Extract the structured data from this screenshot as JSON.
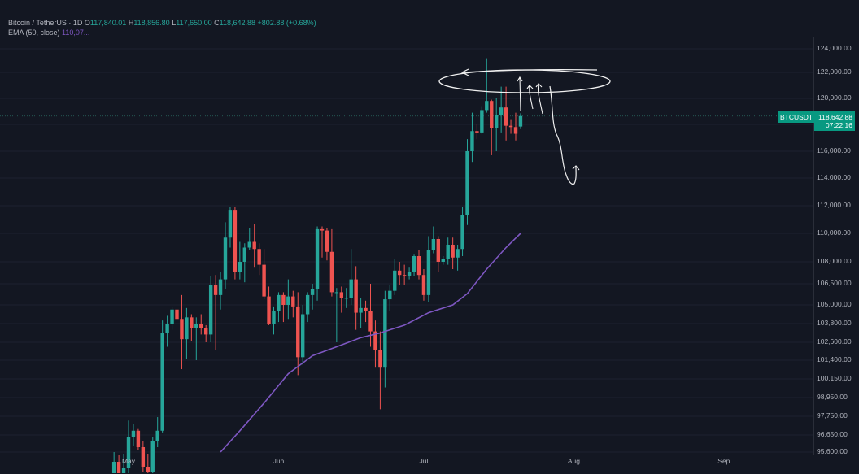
{
  "header": {
    "symbol": "Bitcoin / TetherUS · 1D",
    "o_label": "O",
    "o_value": "117,840.01",
    "h_label": "H",
    "h_value": "118,856.80",
    "l_label": "L",
    "l_value": "117,650.00",
    "c_label": "C",
    "c_value": "118,642.88",
    "change": "+802.88 (+0.68%)",
    "ema_label": "EMA (50, close)",
    "ema_value": "110,07..."
  },
  "badge": {
    "ticker": "BTCUSDT",
    "price": "118,642.88",
    "countdown": "07:22:16"
  },
  "colors": {
    "up": "#26a69a",
    "down": "#ef5350",
    "ema": "#7e57c2",
    "bg": "#131722"
  },
  "chart_data": {
    "type": "candlestick",
    "ylabels": [
      "124,000.00",
      "122,000.00",
      "120,000.00",
      "118,000.00",
      "116,000.00",
      "114,000.00",
      "112,000.00",
      "110,000.00",
      "108,000.00",
      "106,500.00",
      "105,000.00",
      "103,800.00",
      "102,600.00",
      "101,400.00",
      "100,150.00",
      "98,950.00",
      "97,750.00",
      "96,650.00",
      "95,600.00"
    ],
    "xlabels": [
      "May",
      "Jun",
      "Jul",
      "Aug",
      "Sep"
    ],
    "candles": [
      {
        "date": "2025-04-28",
        "o": 94000,
        "h": 95600,
        "l": 93000,
        "c": 95000
      },
      {
        "date": "2025-04-29",
        "o": 95000,
        "h": 95400,
        "l": 94000,
        "c": 94300
      },
      {
        "date": "2025-04-30",
        "o": 94300,
        "h": 95500,
        "l": 93800,
        "c": 94600
      },
      {
        "date": "2025-05-01",
        "o": 94600,
        "h": 97500,
        "l": 94200,
        "c": 96500
      },
      {
        "date": "2025-05-02",
        "o": 96500,
        "h": 97300,
        "l": 96000,
        "c": 96900
      },
      {
        "date": "2025-05-03",
        "o": 96900,
        "h": 97000,
        "l": 95700,
        "c": 95900
      },
      {
        "date": "2025-05-04",
        "o": 95900,
        "h": 96300,
        "l": 94400,
        "c": 94700
      },
      {
        "date": "2025-05-05",
        "o": 94700,
        "h": 95500,
        "l": 93600,
        "c": 94400
      },
      {
        "date": "2025-05-06",
        "o": 94400,
        "h": 96500,
        "l": 93900,
        "c": 96300
      },
      {
        "date": "2025-05-07",
        "o": 96300,
        "h": 97700,
        "l": 95900,
        "c": 96900
      },
      {
        "date": "2025-05-08",
        "o": 96900,
        "h": 104000,
        "l": 96800,
        "c": 103200
      },
      {
        "date": "2025-05-09",
        "o": 103200,
        "h": 104300,
        "l": 102300,
        "c": 103800
      },
      {
        "date": "2025-05-10",
        "o": 103800,
        "h": 104900,
        "l": 103400,
        "c": 104700
      },
      {
        "date": "2025-05-11",
        "o": 104700,
        "h": 105200,
        "l": 103300,
        "c": 104100
      },
      {
        "date": "2025-05-12",
        "o": 104100,
        "h": 105700,
        "l": 100800,
        "c": 102800
      },
      {
        "date": "2025-05-13",
        "o": 102800,
        "h": 104800,
        "l": 101500,
        "c": 104200
      },
      {
        "date": "2025-05-14",
        "o": 104200,
        "h": 104400,
        "l": 102700,
        "c": 103500
      },
      {
        "date": "2025-05-15",
        "o": 103500,
        "h": 104200,
        "l": 101400,
        "c": 103800
      },
      {
        "date": "2025-05-16",
        "o": 103800,
        "h": 104400,
        "l": 103100,
        "c": 103500
      },
      {
        "date": "2025-05-17",
        "o": 103500,
        "h": 103700,
        "l": 102600,
        "c": 103100
      },
      {
        "date": "2025-05-18",
        "o": 103100,
        "h": 107000,
        "l": 102600,
        "c": 106400
      },
      {
        "date": "2025-05-19",
        "o": 106400,
        "h": 107100,
        "l": 102100,
        "c": 105700
      },
      {
        "date": "2025-05-20",
        "o": 105700,
        "h": 107300,
        "l": 104700,
        "c": 106800
      },
      {
        "date": "2025-05-21",
        "o": 106800,
        "h": 110800,
        "l": 106100,
        "c": 109700
      },
      {
        "date": "2025-05-22",
        "o": 109700,
        "h": 111900,
        "l": 109000,
        "c": 111700
      },
      {
        "date": "2025-05-23",
        "o": 111700,
        "h": 111900,
        "l": 106800,
        "c": 107300
      },
      {
        "date": "2025-05-24",
        "o": 107300,
        "h": 109400,
        "l": 106800,
        "c": 108000
      },
      {
        "date": "2025-05-25",
        "o": 108000,
        "h": 109300,
        "l": 106600,
        "c": 109000
      },
      {
        "date": "2025-05-26",
        "o": 109000,
        "h": 110400,
        "l": 108800,
        "c": 109400
      },
      {
        "date": "2025-05-27",
        "o": 109400,
        "h": 110700,
        "l": 107600,
        "c": 108900
      },
      {
        "date": "2025-05-28",
        "o": 108900,
        "h": 109300,
        "l": 107100,
        "c": 107800
      },
      {
        "date": "2025-05-29",
        "o": 107800,
        "h": 108900,
        "l": 105400,
        "c": 105600
      },
      {
        "date": "2025-05-30",
        "o": 105600,
        "h": 106300,
        "l": 103700,
        "c": 103800
      },
      {
        "date": "2025-05-31",
        "o": 103800,
        "h": 104900,
        "l": 103100,
        "c": 104600
      },
      {
        "date": "2025-06-01",
        "o": 104600,
        "h": 105900,
        "l": 103900,
        "c": 105700
      },
      {
        "date": "2025-06-02",
        "o": 105700,
        "h": 105900,
        "l": 103900,
        "c": 105000
      },
      {
        "date": "2025-06-03",
        "o": 105000,
        "h": 106800,
        "l": 104100,
        "c": 105600
      },
      {
        "date": "2025-06-04",
        "o": 105600,
        "h": 106000,
        "l": 104200,
        "c": 104900
      },
      {
        "date": "2025-06-05",
        "o": 104900,
        "h": 105900,
        "l": 100400,
        "c": 101600
      },
      {
        "date": "2025-06-06",
        "o": 101600,
        "h": 105000,
        "l": 101100,
        "c": 104400
      },
      {
        "date": "2025-06-07",
        "o": 104400,
        "h": 105900,
        "l": 103900,
        "c": 105700
      },
      {
        "date": "2025-06-08",
        "o": 105700,
        "h": 106500,
        "l": 104700,
        "c": 106100
      },
      {
        "date": "2025-06-09",
        "o": 106100,
        "h": 110500,
        "l": 105300,
        "c": 110300
      },
      {
        "date": "2025-06-10",
        "o": 110300,
        "h": 110500,
        "l": 108300,
        "c": 110200
      },
      {
        "date": "2025-06-11",
        "o": 110200,
        "h": 110400,
        "l": 108100,
        "c": 108700
      },
      {
        "date": "2025-06-12",
        "o": 108700,
        "h": 110300,
        "l": 105600,
        "c": 105900
      },
      {
        "date": "2025-06-13",
        "o": 105900,
        "h": 106200,
        "l": 102600,
        "c": 105900
      },
      {
        "date": "2025-06-14",
        "o": 105900,
        "h": 106300,
        "l": 104500,
        "c": 105500
      },
      {
        "date": "2025-06-15",
        "o": 105500,
        "h": 106200,
        "l": 104800,
        "c": 105500
      },
      {
        "date": "2025-06-16",
        "o": 105500,
        "h": 108900,
        "l": 105000,
        "c": 106800
      },
      {
        "date": "2025-06-17",
        "o": 106800,
        "h": 107700,
        "l": 103400,
        "c": 104500
      },
      {
        "date": "2025-06-18",
        "o": 104500,
        "h": 105500,
        "l": 103500,
        "c": 104800
      },
      {
        "date": "2025-06-19",
        "o": 104800,
        "h": 105300,
        "l": 103900,
        "c": 104600
      },
      {
        "date": "2025-06-20",
        "o": 104600,
        "h": 106500,
        "l": 102300,
        "c": 103300
      },
      {
        "date": "2025-06-21",
        "o": 103300,
        "h": 104000,
        "l": 100900,
        "c": 102100
      },
      {
        "date": "2025-06-22",
        "o": 102100,
        "h": 103300,
        "l": 98200,
        "c": 100900
      },
      {
        "date": "2025-06-23",
        "o": 100900,
        "h": 106000,
        "l": 99600,
        "c": 105400
      },
      {
        "date": "2025-06-24",
        "o": 105400,
        "h": 106400,
        "l": 104600,
        "c": 106000
      },
      {
        "date": "2025-06-25",
        "o": 106000,
        "h": 108200,
        "l": 105700,
        "c": 107400
      },
      {
        "date": "2025-06-26",
        "o": 107400,
        "h": 108000,
        "l": 106400,
        "c": 107100
      },
      {
        "date": "2025-06-27",
        "o": 107100,
        "h": 107800,
        "l": 106400,
        "c": 107000
      },
      {
        "date": "2025-06-28",
        "o": 107000,
        "h": 107600,
        "l": 106800,
        "c": 107300
      },
      {
        "date": "2025-06-29",
        "o": 107300,
        "h": 108500,
        "l": 107000,
        "c": 108400
      },
      {
        "date": "2025-06-30",
        "o": 108400,
        "h": 108800,
        "l": 106800,
        "c": 107100
      },
      {
        "date": "2025-07-01",
        "o": 107100,
        "h": 107500,
        "l": 105300,
        "c": 105700
      },
      {
        "date": "2025-07-02",
        "o": 105700,
        "h": 109800,
        "l": 105200,
        "c": 108800
      },
      {
        "date": "2025-07-03",
        "o": 108800,
        "h": 110500,
        "l": 108600,
        "c": 109600
      },
      {
        "date": "2025-07-04",
        "o": 109600,
        "h": 109800,
        "l": 107300,
        "c": 108000
      },
      {
        "date": "2025-07-05",
        "o": 108000,
        "h": 108400,
        "l": 107800,
        "c": 108200
      },
      {
        "date": "2025-07-06",
        "o": 108200,
        "h": 109700,
        "l": 107800,
        "c": 109200
      },
      {
        "date": "2025-07-07",
        "o": 109200,
        "h": 109700,
        "l": 107500,
        "c": 108300
      },
      {
        "date": "2025-07-08",
        "o": 108300,
        "h": 109200,
        "l": 107400,
        "c": 108900
      },
      {
        "date": "2025-07-09",
        "o": 108900,
        "h": 111900,
        "l": 108400,
        "c": 111300
      },
      {
        "date": "2025-07-10",
        "o": 111300,
        "h": 116900,
        "l": 110600,
        "c": 116000
      },
      {
        "date": "2025-07-11",
        "o": 116000,
        "h": 118900,
        "l": 115200,
        "c": 117500
      },
      {
        "date": "2025-07-12",
        "o": 117500,
        "h": 118000,
        "l": 116900,
        "c": 117400
      },
      {
        "date": "2025-07-13",
        "o": 117400,
        "h": 119400,
        "l": 117300,
        "c": 119100
      },
      {
        "date": "2025-07-14",
        "o": 119100,
        "h": 123200,
        "l": 118900,
        "c": 119800
      },
      {
        "date": "2025-07-15",
        "o": 119800,
        "h": 119900,
        "l": 115700,
        "c": 117700
      },
      {
        "date": "2025-07-16",
        "o": 117700,
        "h": 120000,
        "l": 116000,
        "c": 118700
      },
      {
        "date": "2025-07-17",
        "o": 118700,
        "h": 120900,
        "l": 117400,
        "c": 119300
      },
      {
        "date": "2025-07-18",
        "o": 119300,
        "h": 120900,
        "l": 116800,
        "c": 117900
      },
      {
        "date": "2025-07-19",
        "o": 117900,
        "h": 118400,
        "l": 117300,
        "c": 117800
      },
      {
        "date": "2025-07-20",
        "o": 117800,
        "h": 118900,
        "l": 116800,
        "c": 117300
      },
      {
        "date": "2025-07-21",
        "o": 117840.01,
        "h": 118856.8,
        "l": 117650,
        "c": 118642.88
      }
    ],
    "ema_series": {
      "name": "EMA (50, close)",
      "points": [
        {
          "date": "2025-05-20",
          "v": 95600
        },
        {
          "date": "2025-05-24",
          "v": 96900
        },
        {
          "date": "2025-05-29",
          "v": 98600
        },
        {
          "date": "2025-06-03",
          "v": 100500
        },
        {
          "date": "2025-06-08",
          "v": 101700
        },
        {
          "date": "2025-06-13",
          "v": 102300
        },
        {
          "date": "2025-06-18",
          "v": 102900
        },
        {
          "date": "2025-06-22",
          "v": 103200
        },
        {
          "date": "2025-06-27",
          "v": 103700
        },
        {
          "date": "2025-07-02",
          "v": 104500
        },
        {
          "date": "2025-07-07",
          "v": 105000
        },
        {
          "date": "2025-07-10",
          "v": 105800
        },
        {
          "date": "2025-07-14",
          "v": 107500
        },
        {
          "date": "2025-07-18",
          "v": 109000
        },
        {
          "date": "2025-07-21",
          "v": 110000
        }
      ]
    }
  }
}
